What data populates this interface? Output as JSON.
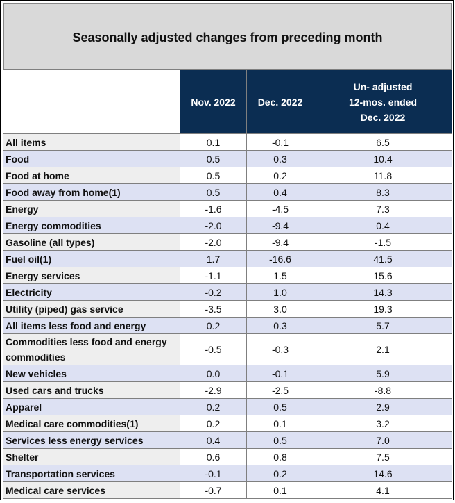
{
  "title": "Seasonally adjusted changes from preceding month",
  "columns": {
    "nov": "Nov. 2022",
    "dec": "Dec. 2022",
    "unadj_line1": "Un- adjusted",
    "unadj_line2": "12-mos. ended",
    "unadj_line3": "Dec. 2022"
  },
  "rows": [
    {
      "label": "All items",
      "nov": "0.1",
      "dec": "-0.1",
      "yoy": "6.5"
    },
    {
      "label": "Food",
      "nov": "0.5",
      "dec": "0.3",
      "yoy": "10.4"
    },
    {
      "label": "Food at home",
      "nov": "0.5",
      "dec": "0.2",
      "yoy": "11.8"
    },
    {
      "label": "Food away from home(1)",
      "nov": "0.5",
      "dec": "0.4",
      "yoy": "8.3"
    },
    {
      "label": "Energy",
      "nov": "-1.6",
      "dec": "-4.5",
      "yoy": "7.3"
    },
    {
      "label": "Energy commodities",
      "nov": "-2.0",
      "dec": "-9.4",
      "yoy": "0.4"
    },
    {
      "label": "Gasoline (all types)",
      "nov": "-2.0",
      "dec": "-9.4",
      "yoy": "-1.5"
    },
    {
      "label": "Fuel oil(1)",
      "nov": "1.7",
      "dec": "-16.6",
      "yoy": "41.5"
    },
    {
      "label": "Energy services",
      "nov": "-1.1",
      "dec": "1.5",
      "yoy": "15.6"
    },
    {
      "label": "Electricity",
      "nov": "-0.2",
      "dec": "1.0",
      "yoy": "14.3"
    },
    {
      "label": "Utility (piped) gas service",
      "nov": "-3.5",
      "dec": "3.0",
      "yoy": "19.3"
    },
    {
      "label": "All items less food and energy",
      "nov": "0.2",
      "dec": "0.3",
      "yoy": "5.7"
    },
    {
      "label": "Commodities less food and energy commodities",
      "nov": "-0.5",
      "dec": "-0.3",
      "yoy": "2.1"
    },
    {
      "label": "New vehicles",
      "nov": "0.0",
      "dec": "-0.1",
      "yoy": "5.9"
    },
    {
      "label": "Used cars and trucks",
      "nov": "-2.9",
      "dec": "-2.5",
      "yoy": "-8.8"
    },
    {
      "label": "Apparel",
      "nov": "0.2",
      "dec": "0.5",
      "yoy": "2.9"
    },
    {
      "label": "Medical care commodities(1)",
      "nov": "0.2",
      "dec": "0.1",
      "yoy": "3.2"
    },
    {
      "label": "Services less energy services",
      "nov": "0.4",
      "dec": "0.5",
      "yoy": "7.0"
    },
    {
      "label": "Shelter",
      "nov": "0.6",
      "dec": "0.8",
      "yoy": "7.5"
    },
    {
      "label": "Transportation services",
      "nov": "-0.1",
      "dec": "0.2",
      "yoy": "14.6"
    },
    {
      "label": "Medical care services",
      "nov": "-0.7",
      "dec": "0.1",
      "yoy": "4.1"
    }
  ]
}
